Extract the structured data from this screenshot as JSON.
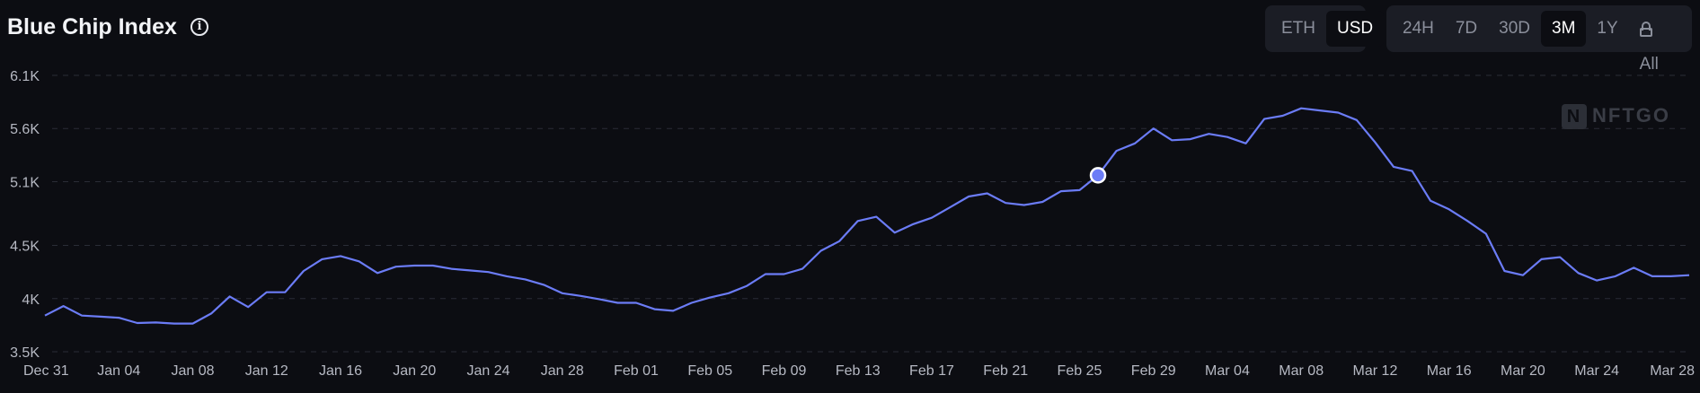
{
  "header": {
    "title": "Blue Chip Index",
    "info_icon": "info-icon",
    "currency_options": [
      {
        "label": "ETH",
        "active": false
      },
      {
        "label": "USD",
        "active": true
      }
    ],
    "range_options": [
      {
        "label": "24H",
        "active": false
      },
      {
        "label": "7D",
        "active": false
      },
      {
        "label": "30D",
        "active": false
      },
      {
        "label": "3M",
        "active": true
      },
      {
        "label": "1Y",
        "active": false
      },
      {
        "label": "All",
        "active": false,
        "icon": "lock-icon"
      }
    ]
  },
  "watermark": {
    "logo": "N",
    "text": "NFTGO"
  },
  "chart_data": {
    "type": "line",
    "series_color": "#6b7cf6",
    "grid": true,
    "ylim": [
      3500,
      6100
    ],
    "yticks": [
      3500,
      4000,
      4500,
      5100,
      5600,
      6100
    ],
    "ytick_labels": [
      "3.5K",
      "4K",
      "4.5K",
      "5.1K",
      "5.6K",
      "6.1K"
    ],
    "xlim": [
      0,
      89
    ],
    "xticks": [
      0,
      4,
      8,
      12,
      16,
      20,
      24,
      28,
      32,
      36,
      40,
      44,
      48,
      52,
      56,
      60,
      64,
      68,
      72,
      76,
      80,
      84,
      88
    ],
    "xtick_labels": [
      "Dec 31",
      "Jan 04",
      "Jan 08",
      "Jan 12",
      "Jan 16",
      "Jan 20",
      "Jan 24",
      "Jan 28",
      "Feb 01",
      "Feb 05",
      "Feb 09",
      "Feb 13",
      "Feb 17",
      "Feb 21",
      "Feb 25",
      "Feb 29",
      "Mar 04",
      "Mar 08",
      "Mar 12",
      "Mar 16",
      "Mar 20",
      "Mar 24",
      "Mar 28"
    ],
    "highlight_index": 57,
    "values": [
      3840,
      3930,
      3840,
      3830,
      3820,
      3770,
      3775,
      3765,
      3765,
      3860,
      4020,
      3920,
      4060,
      4060,
      4260,
      4370,
      4400,
      4350,
      4240,
      4300,
      4310,
      4310,
      4280,
      4265,
      4250,
      4210,
      4180,
      4130,
      4050,
      4025,
      3995,
      3960,
      3960,
      3900,
      3885,
      3960,
      4010,
      4050,
      4120,
      4230,
      4230,
      4280,
      4450,
      4540,
      4730,
      4770,
      4620,
      4700,
      4760,
      4860,
      4960,
      4990,
      4900,
      4880,
      4910,
      5010,
      5020,
      5160,
      5390,
      5460,
      5600,
      5490,
      5500,
      5550,
      5520,
      5460,
      5690,
      5720,
      5790,
      5770,
      5750,
      5680,
      5470,
      5240,
      5200,
      4920,
      4840,
      4730,
      4610,
      4260,
      4220,
      4370,
      4390,
      4240,
      4170,
      4210,
      4290,
      4210,
      4210,
      4220
    ]
  }
}
